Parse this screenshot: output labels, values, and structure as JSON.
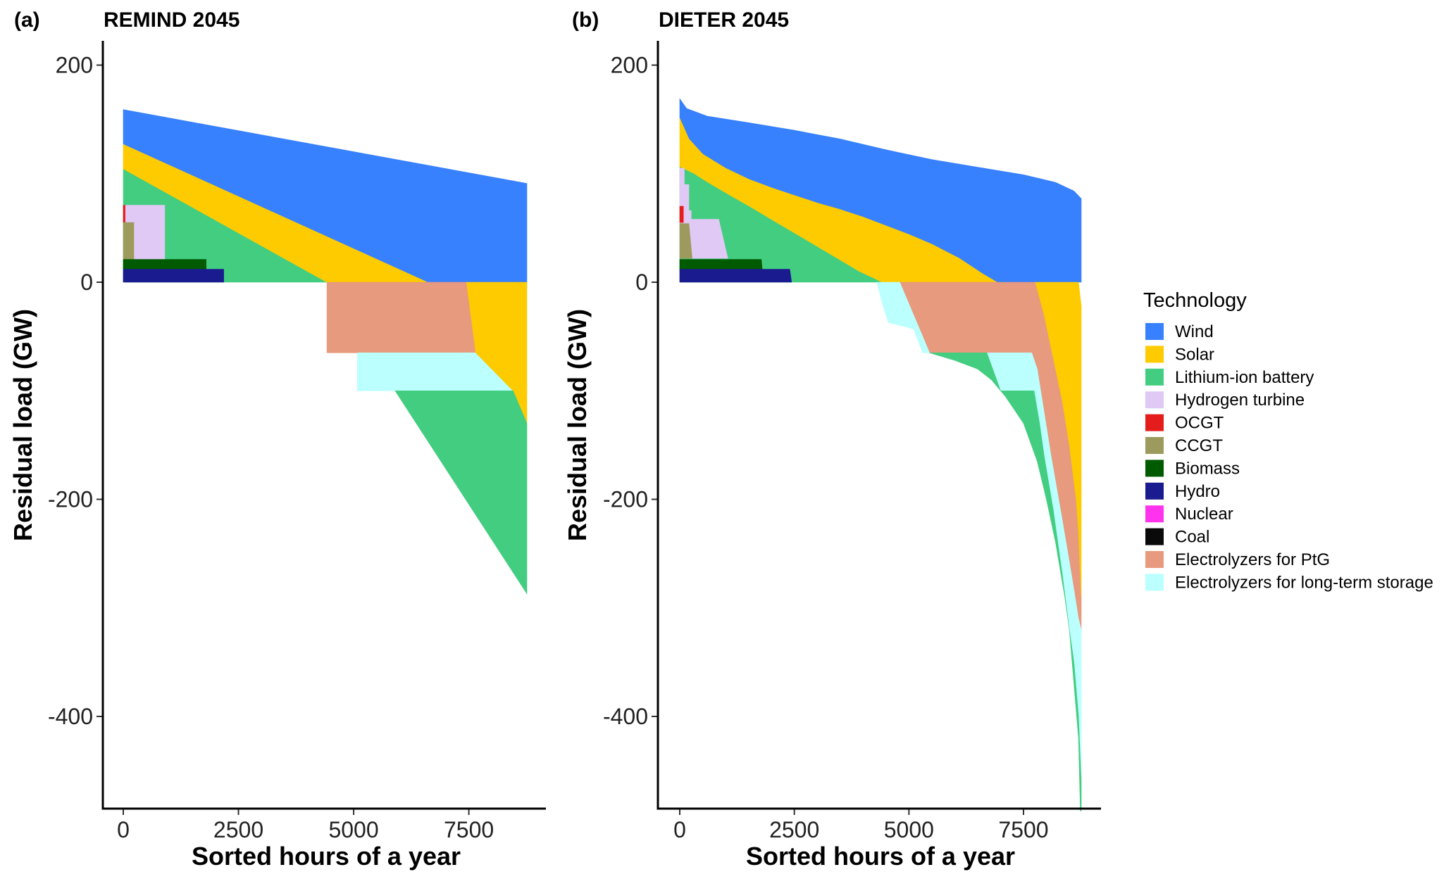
{
  "legend": {
    "title": "Technology",
    "items": [
      {
        "key": "wind",
        "label": "Wind",
        "color": "#3780fe"
      },
      {
        "key": "solar",
        "label": "Solar",
        "color": "#fecb00"
      },
      {
        "key": "battery",
        "label": "Lithium-ion battery",
        "color": "#43cd80"
      },
      {
        "key": "hydrogen",
        "label": "Hydrogen turbine",
        "color": "#e0c9f5"
      },
      {
        "key": "ocgt",
        "label": "OCGT",
        "color": "#e41c1c"
      },
      {
        "key": "ccgt",
        "label": "CCGT",
        "color": "#9c9b5d"
      },
      {
        "key": "biomass",
        "label": "Biomass",
        "color": "#005a00"
      },
      {
        "key": "hydro",
        "label": "Hydro",
        "color": "#1b1b90"
      },
      {
        "key": "nuclear",
        "label": "Nuclear",
        "color": "#ff33ee"
      },
      {
        "key": "coal",
        "label": "Coal",
        "color": "#0a0a0a"
      },
      {
        "key": "ptg",
        "label": "Electrolyzers for PtG",
        "color": "#e79a7d"
      },
      {
        "key": "lts",
        "label": "Electrolyzers for long-term storage",
        "color": "#bbffff"
      }
    ]
  },
  "chart_data": [
    {
      "type": "area",
      "panel": "(a)",
      "title": "REMIND 2045",
      "xlabel": "Sorted hours of a year",
      "ylabel": "Residual load (GW)",
      "xlim": [
        0,
        8760
      ],
      "ylim": [
        -485,
        220
      ],
      "xticks": [
        0,
        2500,
        5000,
        7500
      ],
      "yticks": [
        200,
        0,
        -200,
        -400
      ],
      "series": [
        {
          "key": "wind",
          "polygon": [
            [
              0,
              159
            ],
            [
              8760,
              91
            ],
            [
              8760,
              0
            ],
            [
              6600,
              0
            ],
            [
              0,
              127
            ]
          ]
        },
        {
          "key": "solar",
          "polygon": [
            [
              0,
              127
            ],
            [
              6600,
              0
            ],
            [
              4400,
              0
            ],
            [
              0,
              104
            ]
          ]
        },
        {
          "key": "battery",
          "polygon": [
            [
              0,
              104
            ],
            [
              4400,
              0
            ],
            [
              0,
              0
            ]
          ]
        },
        {
          "key": "hydrogen",
          "polygon": [
            [
              0,
              71
            ],
            [
              900,
              71
            ],
            [
              900,
              21
            ],
            [
              0,
              21
            ]
          ]
        },
        {
          "key": "ocgt",
          "polygon": [
            [
              0,
              71
            ],
            [
              40,
              71
            ],
            [
              40,
              55
            ],
            [
              0,
              55
            ]
          ]
        },
        {
          "key": "ccgt",
          "polygon": [
            [
              0,
              55
            ],
            [
              230,
              55
            ],
            [
              230,
              21
            ],
            [
              0,
              21
            ]
          ]
        },
        {
          "key": "biomass",
          "polygon": [
            [
              0,
              21
            ],
            [
              1800,
              21
            ],
            [
              1800,
              12
            ],
            [
              0,
              12
            ]
          ]
        },
        {
          "key": "hydro",
          "polygon": [
            [
              0,
              12
            ],
            [
              2180,
              12
            ],
            [
              2180,
              0
            ],
            [
              0,
              0
            ]
          ]
        },
        {
          "key": "ptg",
          "polygon": [
            [
              4420,
              0
            ],
            [
              7450,
              0
            ],
            [
              7650,
              -65
            ],
            [
              4420,
              -65
            ]
          ]
        },
        {
          "key": "lts",
          "polygon": [
            [
              5080,
              -65
            ],
            [
              7650,
              -65
            ],
            [
              8460,
              -100
            ],
            [
              5080,
              -100
            ]
          ]
        },
        {
          "key": "solar",
          "polygon": [
            [
              7450,
              0
            ],
            [
              8760,
              0
            ],
            [
              8760,
              -130
            ],
            [
              8460,
              -100
            ],
            [
              7650,
              -65
            ]
          ]
        },
        {
          "key": "battery",
          "polygon": [
            [
              5900,
              -100
            ],
            [
              8460,
              -100
            ],
            [
              8760,
              -130
            ],
            [
              8760,
              -287
            ]
          ]
        }
      ]
    },
    {
      "type": "area",
      "panel": "(b)",
      "title": "DIETER 2045",
      "xlabel": "Sorted hours of a year",
      "ylabel": "Residual load (GW)",
      "xlim": [
        0,
        8760
      ],
      "ylim": [
        -485,
        220
      ],
      "xticks": [
        0,
        2500,
        5000,
        7500
      ],
      "yticks": [
        200,
        0,
        -200,
        -400
      ],
      "series": [
        {
          "key": "wind",
          "polygon": [
            [
              0,
              169
            ],
            [
              150,
              160
            ],
            [
              600,
              153
            ],
            [
              1500,
              147
            ],
            [
              2500,
              140
            ],
            [
              3500,
              132
            ],
            [
              4500,
              122
            ],
            [
              5500,
              113
            ],
            [
              6500,
              106
            ],
            [
              7500,
              99
            ],
            [
              8200,
              92
            ],
            [
              8600,
              84
            ],
            [
              8760,
              77
            ],
            [
              8760,
              0
            ],
            [
              6920,
              0
            ],
            [
              6600,
              8
            ],
            [
              6100,
              22
            ],
            [
              5500,
              35
            ],
            [
              5000,
              44
            ],
            [
              4500,
              52
            ],
            [
              4000,
              60
            ],
            [
              3500,
              67
            ],
            [
              3000,
              73
            ],
            [
              2500,
              80
            ],
            [
              2000,
              87
            ],
            [
              1500,
              95
            ],
            [
              1000,
              105
            ],
            [
              500,
              118
            ],
            [
              200,
              132
            ],
            [
              0,
              151
            ]
          ]
        },
        {
          "key": "solar",
          "polygon": [
            [
              0,
              151
            ],
            [
              200,
              132
            ],
            [
              500,
              118
            ],
            [
              1000,
              105
            ],
            [
              1500,
              95
            ],
            [
              2000,
              87
            ],
            [
              2500,
              80
            ],
            [
              3000,
              73
            ],
            [
              3500,
              67
            ],
            [
              4000,
              60
            ],
            [
              4500,
              52
            ],
            [
              5000,
              44
            ],
            [
              5500,
              35
            ],
            [
              6100,
              22
            ],
            [
              6600,
              8
            ],
            [
              6920,
              0
            ],
            [
              4400,
              0
            ],
            [
              3900,
              10
            ],
            [
              3300,
              25
            ],
            [
              2700,
              40
            ],
            [
              2100,
              55
            ],
            [
              1500,
              70
            ],
            [
              1000,
              82
            ],
            [
              600,
              92
            ],
            [
              300,
              100
            ],
            [
              0,
              106
            ]
          ]
        },
        {
          "key": "battery",
          "polygon": [
            [
              0,
              106
            ],
            [
              300,
              100
            ],
            [
              600,
              92
            ],
            [
              1000,
              82
            ],
            [
              1500,
              70
            ],
            [
              2100,
              55
            ],
            [
              2700,
              40
            ],
            [
              3300,
              25
            ],
            [
              3900,
              10
            ],
            [
              4400,
              0
            ],
            [
              0,
              0
            ]
          ]
        },
        {
          "key": "hydrogen",
          "polygon": [
            [
              0,
              105
            ],
            [
              100,
              105
            ],
            [
              100,
              90
            ],
            [
              200,
              90
            ],
            [
              200,
              66
            ],
            [
              250,
              66
            ],
            [
              250,
              58
            ],
            [
              850,
              58
            ],
            [
              1050,
              22
            ],
            [
              0,
              22
            ]
          ]
        },
        {
          "key": "ocgt",
          "polygon": [
            [
              0,
              70
            ],
            [
              80,
              70
            ],
            [
              80,
              55
            ],
            [
              0,
              55
            ]
          ]
        },
        {
          "key": "ccgt",
          "polygon": [
            [
              0,
              54
            ],
            [
              200,
              54
            ],
            [
              270,
              22
            ],
            [
              0,
              22
            ]
          ]
        },
        {
          "key": "biomass",
          "polygon": [
            [
              0,
              21
            ],
            [
              1780,
              21
            ],
            [
              1800,
              12
            ],
            [
              0,
              12
            ]
          ]
        },
        {
          "key": "hydro",
          "polygon": [
            [
              0,
              12
            ],
            [
              2400,
              12
            ],
            [
              2440,
              0
            ],
            [
              0,
              0
            ]
          ]
        },
        {
          "key": "ptg",
          "polygon": [
            [
              4800,
              0
            ],
            [
              7760,
              0
            ],
            [
              7950,
              -30
            ],
            [
              8150,
              -70
            ],
            [
              8350,
              -110
            ],
            [
              8500,
              -150
            ],
            [
              8650,
              -200
            ],
            [
              8700,
              -230
            ],
            [
              8730,
              -260
            ],
            [
              8760,
              -290
            ],
            [
              8760,
              -320
            ],
            [
              8700,
              -310
            ],
            [
              8550,
              -270
            ],
            [
              8350,
              -220
            ],
            [
              8100,
              -160
            ],
            [
              7950,
              -120
            ],
            [
              7800,
              -80
            ],
            [
              7680,
              -65
            ],
            [
              5450,
              -65
            ],
            [
              5200,
              -40
            ],
            [
              5000,
              -20
            ]
          ]
        },
        {
          "key": "lts",
          "polygon": [
            [
              4300,
              0
            ],
            [
              4800,
              0
            ],
            [
              5000,
              -20
            ],
            [
              5200,
              -40
            ],
            [
              5450,
              -65
            ],
            [
              5300,
              -65
            ],
            [
              5100,
              -43
            ],
            [
              4550,
              -37
            ],
            [
              4420,
              -20
            ]
          ]
        },
        {
          "key": "lts",
          "polygon": [
            [
              6700,
              -65
            ],
            [
              7680,
              -65
            ],
            [
              7800,
              -80
            ],
            [
              7950,
              -120
            ],
            [
              8100,
              -160
            ],
            [
              8350,
              -220
            ],
            [
              8550,
              -270
            ],
            [
              8700,
              -310
            ],
            [
              8760,
              -320
            ],
            [
              8760,
              -487
            ],
            [
              8740,
              -487
            ],
            [
              8700,
              -420
            ],
            [
              8600,
              -370
            ],
            [
              8500,
              -320
            ],
            [
              8350,
              -270
            ],
            [
              8150,
              -210
            ],
            [
              7950,
              -160
            ],
            [
              7850,
              -130
            ],
            [
              7730,
              -100
            ],
            [
              7000,
              -100
            ]
          ]
        },
        {
          "key": "battery",
          "polygon": [
            [
              5450,
              -65
            ],
            [
              6700,
              -65
            ],
            [
              7000,
              -100
            ],
            [
              7730,
              -100
            ],
            [
              7850,
              -130
            ],
            [
              7950,
              -160
            ],
            [
              8150,
              -210
            ],
            [
              8350,
              -270
            ],
            [
              8500,
              -320
            ],
            [
              8600,
              -370
            ],
            [
              8700,
              -420
            ],
            [
              8740,
              -487
            ],
            [
              8760,
              -487
            ],
            [
              8760,
              -460
            ],
            [
              8730,
              -430
            ],
            [
              8700,
              -400
            ],
            [
              8600,
              -350
            ],
            [
              8400,
              -290
            ],
            [
              8200,
              -240
            ],
            [
              8000,
              -200
            ],
            [
              7800,
              -165
            ],
            [
              7500,
              -130
            ],
            [
              7100,
              -105
            ],
            [
              6800,
              -90
            ],
            [
              6500,
              -80
            ],
            [
              6000,
              -72
            ]
          ]
        },
        {
          "key": "solar",
          "polygon": [
            [
              7760,
              0
            ],
            [
              8700,
              0
            ],
            [
              8760,
              -22
            ],
            [
              8760,
              -290
            ],
            [
              8730,
              -260
            ],
            [
              8700,
              -230
            ],
            [
              8650,
              -200
            ],
            [
              8500,
              -150
            ],
            [
              8350,
              -110
            ],
            [
              8150,
              -70
            ],
            [
              7950,
              -30
            ]
          ]
        }
      ]
    }
  ]
}
